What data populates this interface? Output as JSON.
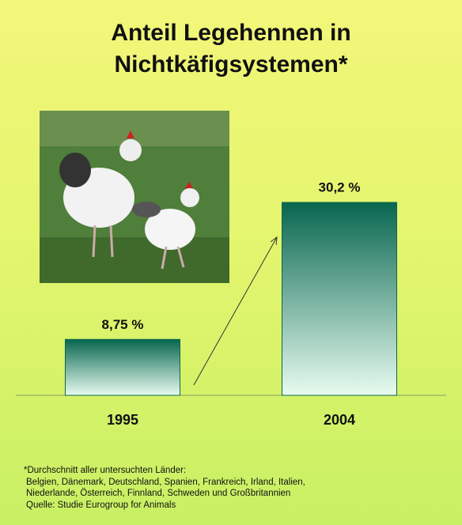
{
  "chart_data": {
    "type": "bar",
    "title": "Anteil Legehennen in Nichtkäfigsystemen*",
    "categories": [
      "1995",
      "2004"
    ],
    "values": [
      8.75,
      30.2
    ],
    "value_labels": [
      "8,75 %",
      "30,2 %"
    ],
    "color": "#08664f",
    "footnote": [
      "*Durchschnitt aller untersuchten Länder:",
      "Belgien, Dänemark, Deutschland, Spanien, Frankreich, Irland, Italien,",
      "Niederlande, Österreich, Finnland, Schweden und Großbritannien",
      "Quelle: Studie Eurogroup for Animals"
    ]
  }
}
